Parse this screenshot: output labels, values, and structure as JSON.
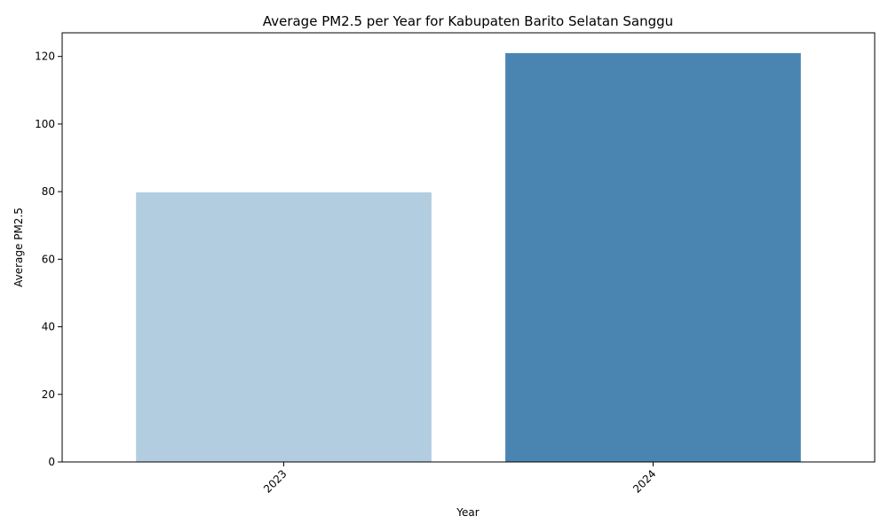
{
  "chart_data": {
    "type": "bar",
    "title": "Average PM2.5 per Year for Kabupaten Barito Selatan Sanggu",
    "xlabel": "Year",
    "ylabel": "Average PM2.5",
    "categories": [
      "2023",
      "2024"
    ],
    "values": [
      79.8,
      121.0
    ],
    "colors": [
      "#b3cde0",
      "#4a85b2"
    ],
    "ylim": [
      0,
      127
    ],
    "yticks": [
      0,
      20,
      40,
      60,
      80,
      100,
      120
    ],
    "grid": false,
    "x_tick_rotation": -45
  }
}
